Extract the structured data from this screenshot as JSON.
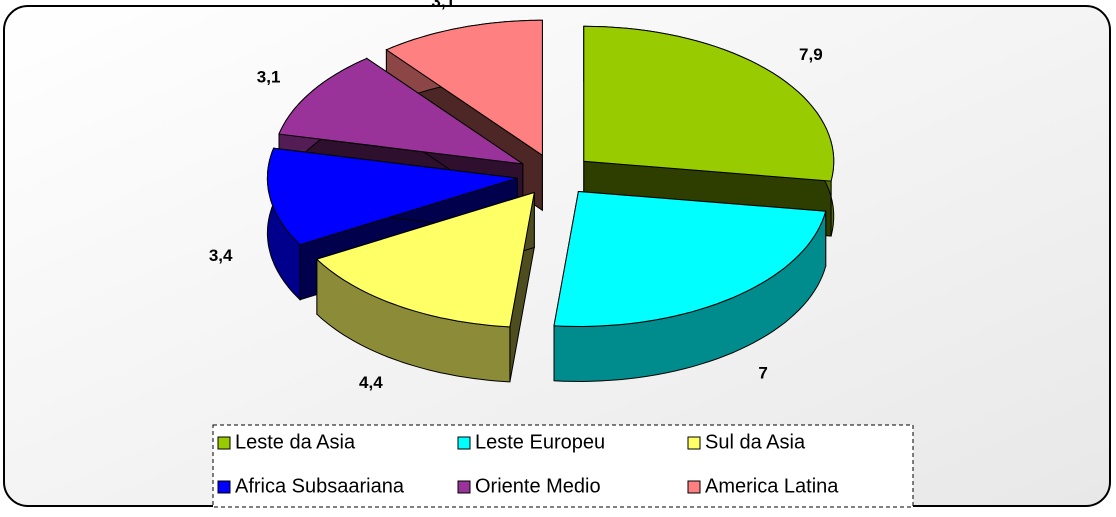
{
  "chart_data": {
    "type": "pie",
    "categories": [
      "Leste da Asia",
      "Leste Europeu",
      "Sul da Asia",
      "Africa Subsaariana",
      "Oriente Medio",
      "America Latina"
    ],
    "values": [
      7.9,
      7,
      4.4,
      3.4,
      3.1,
      3.1
    ],
    "value_labels": [
      "7,9",
      "7",
      "4,4",
      "3,4",
      "3,1",
      "3,1"
    ],
    "colors": [
      "#99cc00",
      "#00ffff",
      "#ffff66",
      "#0000ff",
      "#993399",
      "#ff8080"
    ],
    "legend": "bottom"
  }
}
